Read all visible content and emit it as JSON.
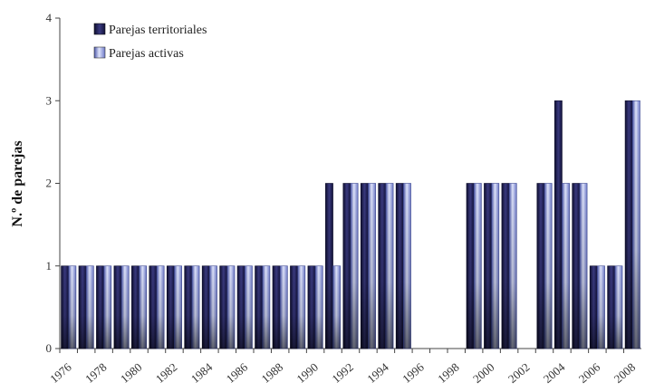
{
  "chart_data": {
    "type": "bar",
    "title": "",
    "xlabel": "",
    "ylabel": "N.º de parejas",
    "ylim": [
      0,
      4
    ],
    "yticks": [
      "0",
      "1",
      "2",
      "3",
      "4"
    ],
    "categories": [
      "1976",
      "1977",
      "1978",
      "1979",
      "1980",
      "1981",
      "1982",
      "1983",
      "1984",
      "1985",
      "1986",
      "1987",
      "1988",
      "1989",
      "1990",
      "1991",
      "1992",
      "1993",
      "1994",
      "1995",
      "1996",
      "1997",
      "1998",
      "1999",
      "2000",
      "2001",
      "2002",
      "2003",
      "2004",
      "2005",
      "2006",
      "2007",
      "2008"
    ],
    "xtick_labels": [
      "1976",
      "1978",
      "1980",
      "1982",
      "1984",
      "1986",
      "1988",
      "1990",
      "1992",
      "1994",
      "1996",
      "1998",
      "2000",
      "2002",
      "2004",
      "2006",
      "2008"
    ],
    "series": [
      {
        "name": "Parejas territoriales",
        "color": "#1c1b4a",
        "values": [
          1,
          1,
          1,
          1,
          1,
          1,
          1,
          1,
          1,
          1,
          1,
          1,
          1,
          1,
          1,
          2,
          2,
          2,
          2,
          2,
          0,
          0,
          0,
          2,
          2,
          2,
          0,
          2,
          3,
          2,
          1,
          1,
          3
        ]
      },
      {
        "name": "Parejas activas",
        "color": "#8a96d8",
        "values": [
          1,
          1,
          1,
          1,
          1,
          1,
          1,
          1,
          1,
          1,
          1,
          1,
          1,
          1,
          1,
          1,
          2,
          2,
          2,
          2,
          0,
          0,
          0,
          2,
          2,
          2,
          0,
          2,
          2,
          2,
          1,
          1,
          3
        ]
      }
    ],
    "legend": "top-left",
    "grid": false
  }
}
